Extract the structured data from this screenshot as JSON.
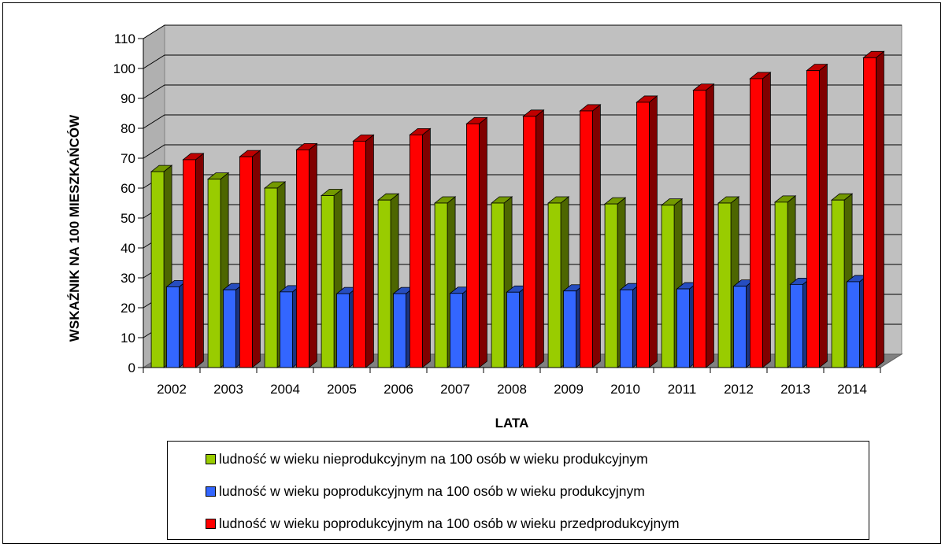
{
  "chart_data": {
    "type": "bar",
    "title": "",
    "xlabel": "LATA",
    "ylabel": "WSKAŹNIK NA 100 MIESZKAŃCÓW",
    "ylim": [
      0,
      110
    ],
    "yticks": [
      0,
      10,
      20,
      30,
      40,
      50,
      60,
      70,
      80,
      90,
      100,
      110
    ],
    "grid": true,
    "legend_position": "bottom",
    "categories": [
      "2002",
      "2003",
      "2004",
      "2005",
      "2006",
      "2007",
      "2008",
      "2009",
      "2010",
      "2011",
      "2012",
      "2013",
      "2014"
    ],
    "series": [
      {
        "name": "ludność w wieku nieprodukcyjnym na 100 osób w wieku produkcyjnym",
        "color": "#99CC00",
        "values": [
          65.5,
          63,
          60,
          57.5,
          56,
          55,
          55,
          55,
          54.7,
          54.3,
          55,
          55.3,
          56
        ]
      },
      {
        "name": "ludność w wieku poprodukcyjnym na 100 osób w wieku produkcyjnym",
        "color": "#3366FF",
        "values": [
          27,
          26,
          25.3,
          24.7,
          24.7,
          24.8,
          25.2,
          25.6,
          26,
          26.3,
          27.2,
          27.8,
          28.7
        ]
      },
      {
        "name": "ludność w wieku poprodukcyjnym na 100 osób w wieku przedprodukcyjnym",
        "color": "#FF0000",
        "values": [
          69.5,
          70.5,
          72.8,
          75.7,
          77.8,
          81.5,
          84,
          85.8,
          88.7,
          92.7,
          96.6,
          99.3,
          103.6
        ]
      }
    ]
  }
}
